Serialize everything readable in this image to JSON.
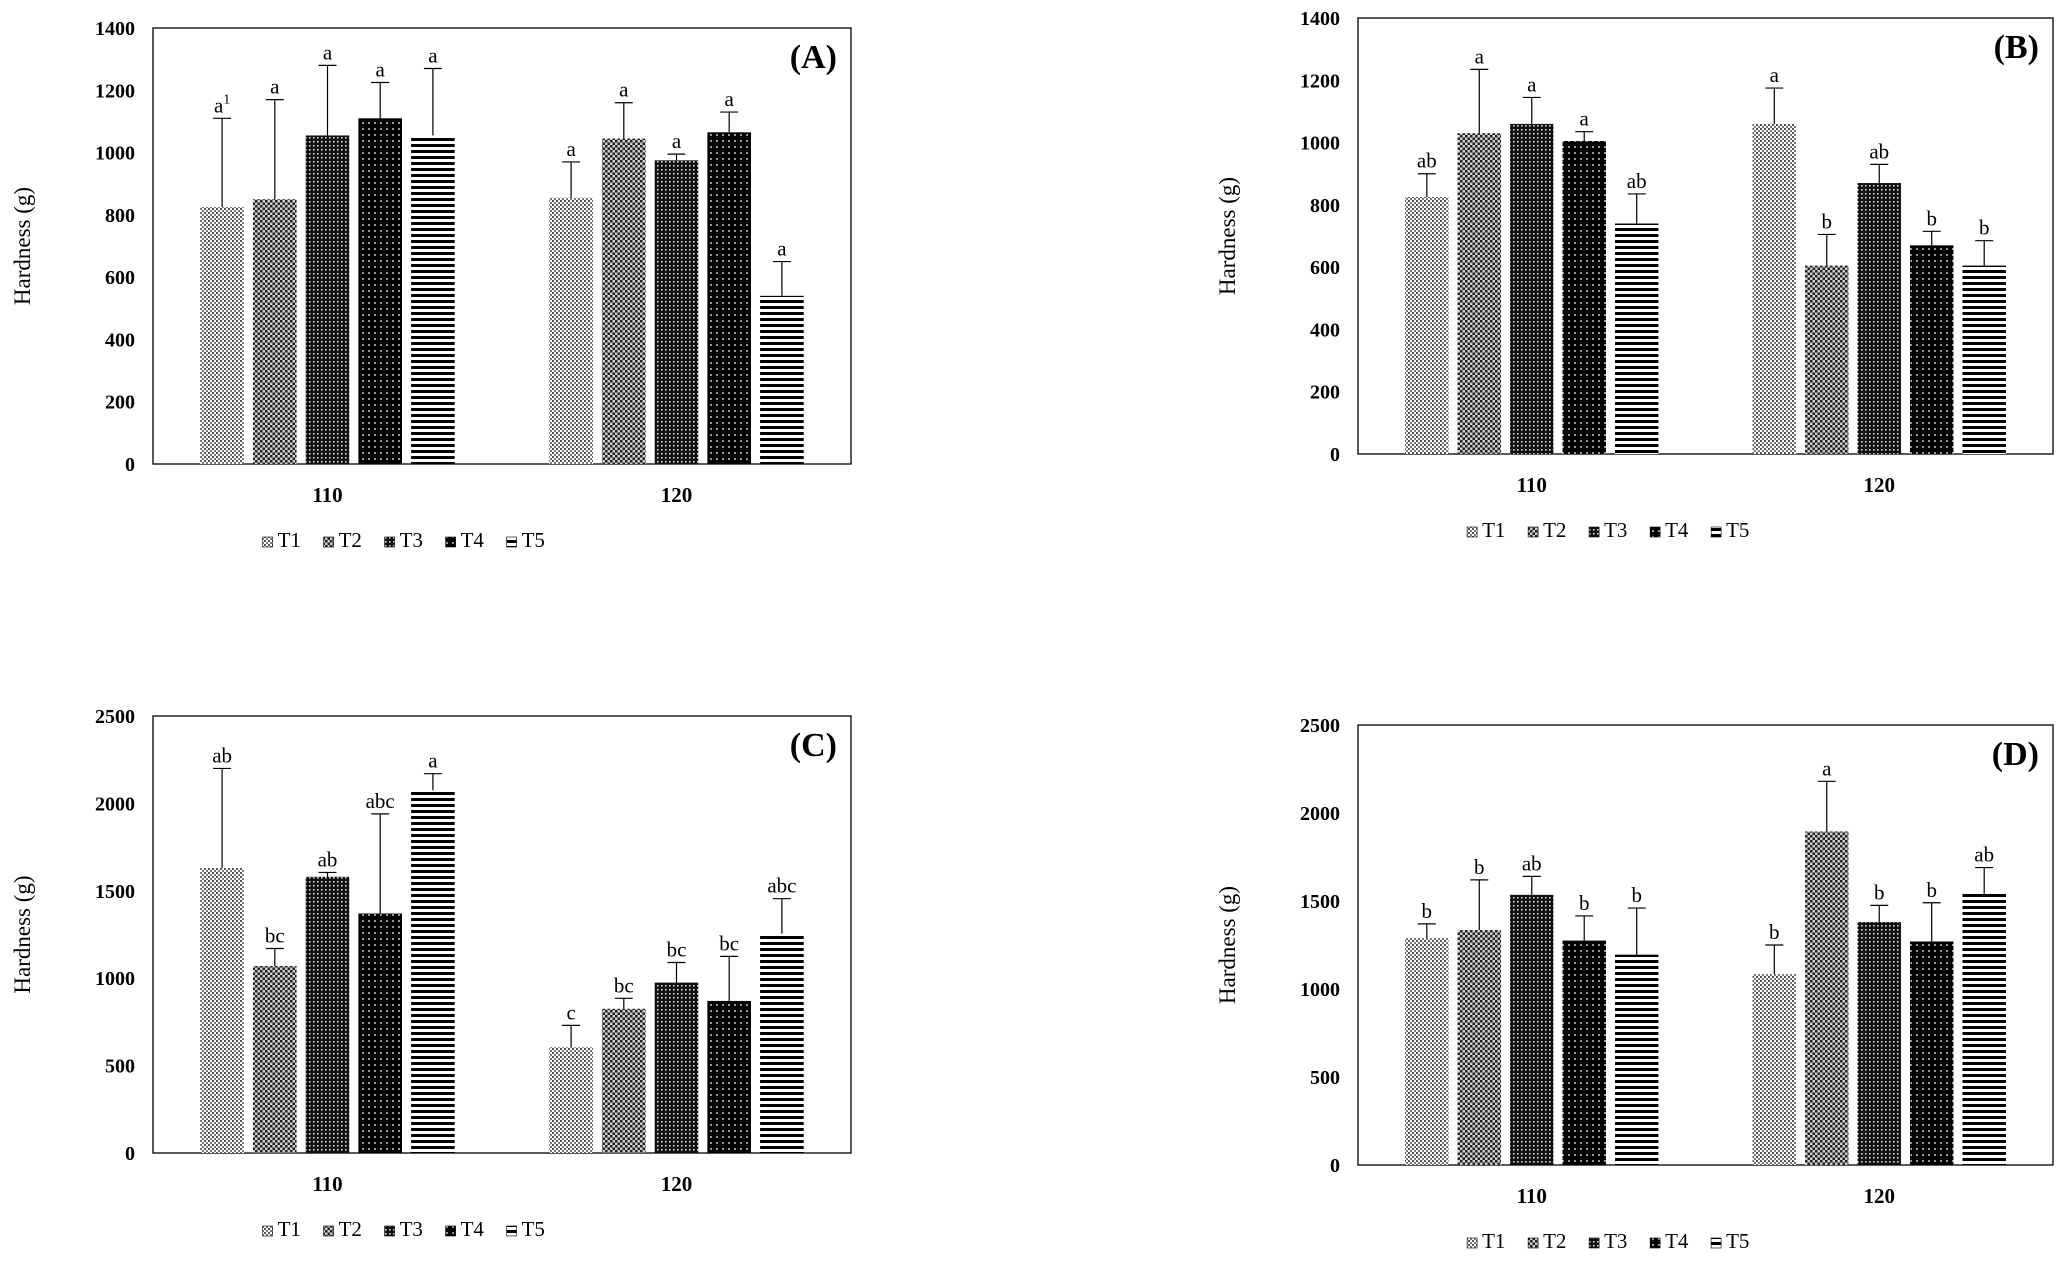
{
  "chart_data": [
    {
      "type": "bar",
      "panel_label": "(A)",
      "ylabel": "Hardness (g)",
      "xlabel": "",
      "ylim": [
        0,
        1400
      ],
      "yticks": [
        "0",
        "200",
        "400",
        "600",
        "800",
        "1000",
        "1200",
        "1400"
      ],
      "categories": [
        "110",
        "120"
      ],
      "legend_position": "bottom",
      "series": [
        {
          "name": "T1",
          "pattern": "dots-light",
          "values": [
            825,
            855
          ],
          "errors": [
            285,
            115
          ],
          "letters": [
            "a",
            "a"
          ],
          "superscripts": [
            "1",
            ""
          ]
        },
        {
          "name": "T2",
          "pattern": "checker",
          "values": [
            850,
            1045
          ],
          "errors": [
            320,
            115
          ],
          "letters": [
            "a",
            "a"
          ],
          "superscripts": [
            "",
            ""
          ]
        },
        {
          "name": "T3",
          "pattern": "grid-dense",
          "values": [
            1055,
            975
          ],
          "errors": [
            225,
            20
          ],
          "letters": [
            "a",
            "a"
          ],
          "superscripts": [
            "",
            ""
          ]
        },
        {
          "name": "T4",
          "pattern": "dots-dark",
          "values": [
            1110,
            1065
          ],
          "errors": [
            115,
            65
          ],
          "letters": [
            "a",
            "a"
          ],
          "superscripts": [
            "",
            ""
          ]
        },
        {
          "name": "T5",
          "pattern": "stripes",
          "values": [
            1055,
            540
          ],
          "errors": [
            215,
            110
          ],
          "letters": [
            "a",
            "a"
          ],
          "superscripts": [
            "",
            ""
          ]
        }
      ]
    },
    {
      "type": "bar",
      "panel_label": "(B)",
      "ylabel": "Hardness (g)",
      "xlabel": "",
      "ylim": [
        0,
        1400
      ],
      "yticks": [
        "0",
        "200",
        "400",
        "600",
        "800",
        "1000",
        "1200",
        "1400"
      ],
      "categories": [
        "110",
        "120"
      ],
      "legend_position": "bottom",
      "series": [
        {
          "name": "T1",
          "pattern": "dots-light",
          "values": [
            825,
            1060
          ],
          "errors": [
            75,
            115
          ],
          "letters": [
            "ab",
            "a"
          ],
          "superscripts": [
            "",
            ""
          ]
        },
        {
          "name": "T2",
          "pattern": "checker",
          "values": [
            1030,
            605
          ],
          "errors": [
            205,
            100
          ],
          "letters": [
            "a",
            "b"
          ],
          "superscripts": [
            "",
            ""
          ]
        },
        {
          "name": "T3",
          "pattern": "grid-dense",
          "values": [
            1060,
            870
          ],
          "errors": [
            85,
            60
          ],
          "letters": [
            "a",
            "ab"
          ],
          "superscripts": [
            "",
            ""
          ]
        },
        {
          "name": "T4",
          "pattern": "dots-dark",
          "values": [
            1005,
            670
          ],
          "errors": [
            30,
            45
          ],
          "letters": [
            "a",
            "b"
          ],
          "superscripts": [
            "",
            ""
          ]
        },
        {
          "name": "T5",
          "pattern": "stripes",
          "values": [
            740,
            605
          ],
          "errors": [
            95,
            80
          ],
          "letters": [
            "ab",
            "b"
          ],
          "superscripts": [
            "",
            ""
          ]
        }
      ]
    },
    {
      "type": "bar",
      "panel_label": "(C)",
      "ylabel": "Hardness (g)",
      "xlabel": "",
      "ylim": [
        0,
        2500
      ],
      "yticks": [
        "0",
        "500",
        "1000",
        "1500",
        "2000",
        "2500"
      ],
      "categories": [
        "110",
        "120"
      ],
      "legend_position": "bottom",
      "series": [
        {
          "name": "T1",
          "pattern": "dots-light",
          "values": [
            1630,
            605
          ],
          "errors": [
            570,
            125
          ],
          "letters": [
            "ab",
            "c"
          ],
          "superscripts": [
            "",
            ""
          ]
        },
        {
          "name": "T2",
          "pattern": "checker",
          "values": [
            1070,
            825
          ],
          "errors": [
            100,
            60
          ],
          "letters": [
            "bc",
            "bc"
          ],
          "superscripts": [
            "",
            ""
          ]
        },
        {
          "name": "T3",
          "pattern": "grid-dense",
          "values": [
            1580,
            975
          ],
          "errors": [
            25,
            115
          ],
          "letters": [
            "ab",
            "bc"
          ],
          "superscripts": [
            "",
            ""
          ]
        },
        {
          "name": "T4",
          "pattern": "dots-dark",
          "values": [
            1370,
            870
          ],
          "errors": [
            570,
            255
          ],
          "letters": [
            "abc",
            "bc"
          ],
          "superscripts": [
            "",
            ""
          ]
        },
        {
          "name": "T5",
          "pattern": "stripes",
          "values": [
            2075,
            1255
          ],
          "errors": [
            95,
            200
          ],
          "letters": [
            "a",
            "abc"
          ],
          "superscripts": [
            "",
            ""
          ]
        }
      ]
    },
    {
      "type": "bar",
      "panel_label": "(D)",
      "ylabel": "Hardness (g)",
      "xlabel": "",
      "ylim": [
        0,
        2500
      ],
      "yticks": [
        "0",
        "500",
        "1000",
        "1500",
        "2000",
        "2500"
      ],
      "categories": [
        "110",
        "120"
      ],
      "legend_position": "bottom",
      "series": [
        {
          "name": "T1",
          "pattern": "dots-light",
          "values": [
            1290,
            1085
          ],
          "errors": [
            80,
            165
          ],
          "letters": [
            "b",
            "b"
          ],
          "superscripts": [
            "",
            ""
          ]
        },
        {
          "name": "T2",
          "pattern": "checker",
          "values": [
            1335,
            1895
          ],
          "errors": [
            285,
            285
          ],
          "letters": [
            "b",
            "a"
          ],
          "superscripts": [
            "",
            ""
          ]
        },
        {
          "name": "T3",
          "pattern": "grid-dense",
          "values": [
            1535,
            1380
          ],
          "errors": [
            105,
            95
          ],
          "letters": [
            "ab",
            "b"
          ],
          "superscripts": [
            "",
            ""
          ]
        },
        {
          "name": "T4",
          "pattern": "dots-dark",
          "values": [
            1275,
            1270
          ],
          "errors": [
            140,
            220
          ],
          "letters": [
            "b",
            "b"
          ],
          "superscripts": [
            "",
            ""
          ]
        },
        {
          "name": "T5",
          "pattern": "stripes",
          "values": [
            1195,
            1540
          ],
          "errors": [
            265,
            150
          ],
          "letters": [
            "b",
            "ab"
          ],
          "superscripts": [
            "",
            ""
          ]
        }
      ]
    }
  ]
}
